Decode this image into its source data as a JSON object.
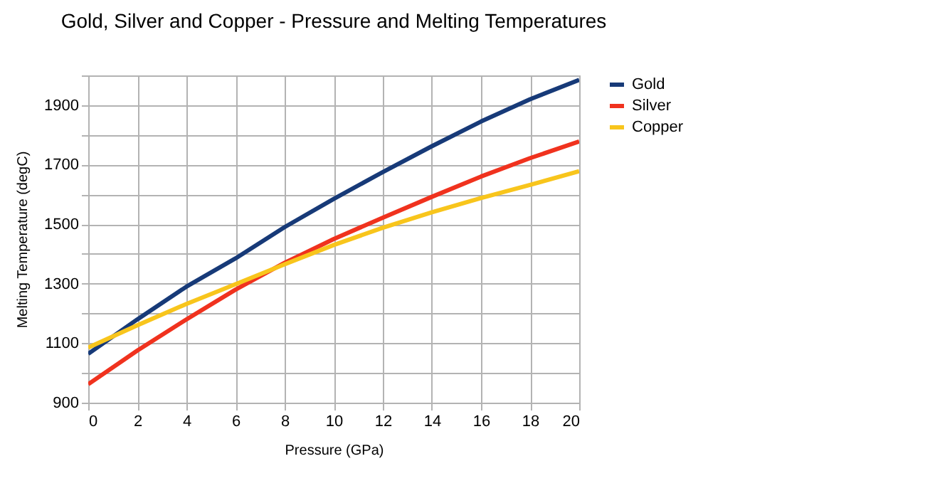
{
  "chart_data": {
    "type": "line",
    "title": "Gold, Silver and Copper - Pressure and Melting Temperatures",
    "xlabel": "Pressure (GPa)",
    "ylabel": "Melting Temperature (degC)",
    "x": [
      0,
      2,
      4,
      6,
      8,
      10,
      12,
      14,
      16,
      18,
      20
    ],
    "series": [
      {
        "name": "Gold",
        "color": "#173a78",
        "values": [
          1064,
          1180,
          1290,
          1385,
          1490,
          1585,
          1675,
          1762,
          1845,
          1920,
          1985
        ]
      },
      {
        "name": "Silver",
        "color": "#f0321e",
        "values": [
          962,
          1075,
          1180,
          1280,
          1370,
          1450,
          1522,
          1592,
          1660,
          1722,
          1778
        ]
      },
      {
        "name": "Copper",
        "color": "#f8c51c",
        "values": [
          1085,
          1160,
          1232,
          1298,
          1365,
          1430,
          1488,
          1540,
          1588,
          1632,
          1678
        ]
      }
    ],
    "xlim": [
      0,
      20
    ],
    "xticks": [
      0,
      2,
      4,
      6,
      8,
      10,
      12,
      14,
      16,
      18,
      20
    ],
    "ylim": [
      900,
      2000
    ],
    "yticks": [
      900,
      {
        "value": 1000,
        "label": null
      },
      1100,
      {
        "value": 1200,
        "label": null
      },
      1300,
      {
        "value": 1400,
        "label": null
      },
      1500,
      {
        "value": 1600,
        "label": null
      },
      1700,
      {
        "value": 1800,
        "label": null
      },
      1900,
      {
        "value": 2000,
        "label": null
      }
    ],
    "grid": true,
    "legend": "right",
    "marker": "none",
    "line_style": "solid"
  }
}
